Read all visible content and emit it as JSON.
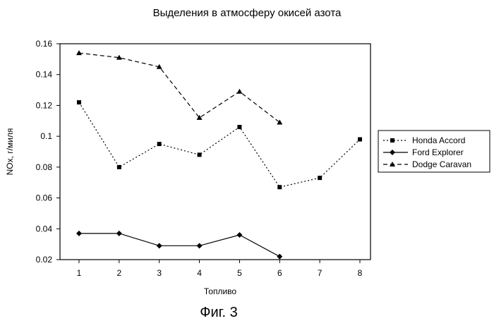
{
  "caption": "Фиг. 3",
  "chart_data": {
    "type": "line",
    "title": "Выделения в атмосферу окисей азота",
    "xlabel": "Топливо",
    "ylabel": "NOx, г/миля",
    "ylim": [
      0.02,
      0.16
    ],
    "yticks": [
      "0.02",
      "0.04",
      "0.06",
      "0.08",
      "0.1",
      "0.12",
      "0.14",
      "0.16"
    ],
    "categories": [
      "1",
      "2",
      "3",
      "4",
      "5",
      "6",
      "7",
      "8"
    ],
    "grid": false,
    "legend_position": "right",
    "series": [
      {
        "name": "Honda Accord",
        "style": "dotted",
        "marker": "square",
        "x": [
          1,
          2,
          3,
          4,
          5,
          6,
          7,
          8
        ],
        "values": [
          0.122,
          0.08,
          0.095,
          0.088,
          0.106,
          0.067,
          0.073,
          0.098
        ]
      },
      {
        "name": "Ford Explorer",
        "style": "solid",
        "marker": "diamond",
        "x": [
          1,
          2,
          3,
          4,
          5,
          6
        ],
        "values": [
          0.037,
          0.037,
          0.029,
          0.029,
          0.036,
          0.022
        ]
      },
      {
        "name": "Dodge Caravan",
        "style": "dashed",
        "marker": "triangle",
        "x": [
          1,
          2,
          3,
          4,
          5,
          6
        ],
        "values": [
          0.154,
          0.151,
          0.145,
          0.112,
          0.129,
          0.109
        ]
      }
    ]
  }
}
